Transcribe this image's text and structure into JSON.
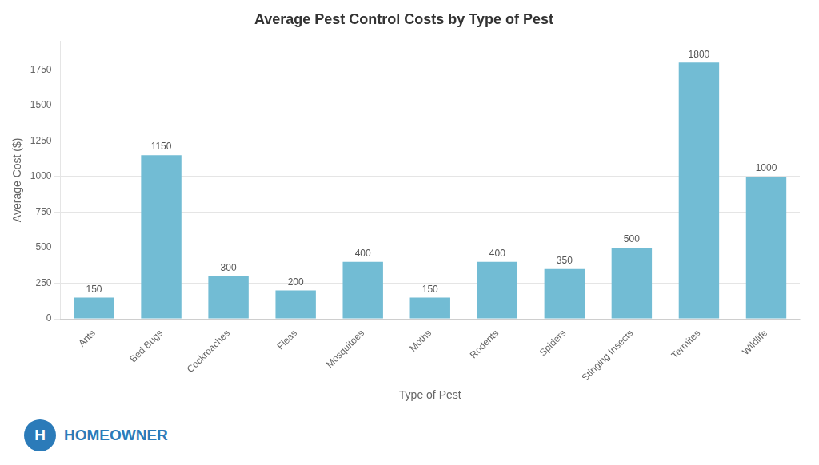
{
  "chart_data": {
    "type": "bar",
    "title": "Average Pest Control Costs by Type of Pest",
    "xlabel": "Type of Pest",
    "ylabel": "Average Cost ($)",
    "categories": [
      "Ants",
      "Bed Bugs",
      "Cockroaches",
      "Fleas",
      "Mosquitoes",
      "Moths",
      "Rodents",
      "Spiders",
      "Stinging Insects",
      "Termites",
      "Wildlife"
    ],
    "values": [
      150,
      1150,
      300,
      200,
      400,
      150,
      400,
      350,
      500,
      1800,
      1000
    ],
    "color": "#72bcd4",
    "ylim": [
      0,
      1950
    ],
    "yticks": [
      0,
      250,
      500,
      750,
      1000,
      1250,
      1500,
      1750
    ],
    "grid": true,
    "data_labels": true,
    "annotations": [
      {
        "text": "H",
        "color": "#2b7bb9"
      },
      {
        "text": "HOMEOWNER",
        "color": "#2b7bb9"
      }
    ]
  }
}
